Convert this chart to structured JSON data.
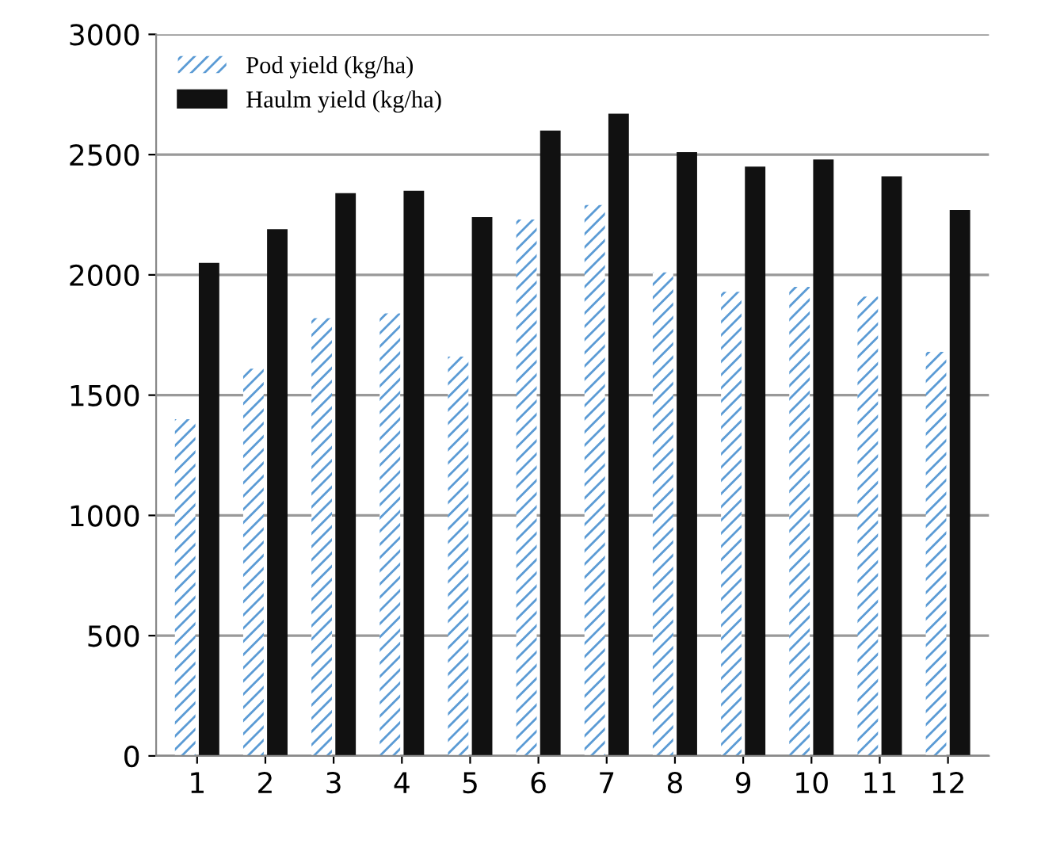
{
  "chart_data": {
    "type": "bar",
    "categories": [
      "1",
      "2",
      "3",
      "4",
      "5",
      "6",
      "7",
      "8",
      "9",
      "10",
      "11",
      "12"
    ],
    "series": [
      {
        "name": "Pod yield (kg/ha)",
        "color": "#5b9bd5",
        "values": [
          1400,
          1610,
          1820,
          1840,
          1660,
          2230,
          2290,
          2010,
          1930,
          1950,
          1910,
          1680
        ]
      },
      {
        "name": "Haulm yield (kg/ha)",
        "color": "#111111",
        "values": [
          2050,
          2190,
          2340,
          2350,
          2240,
          2600,
          2670,
          2510,
          2450,
          2480,
          2410,
          2270
        ]
      }
    ],
    "ylim": [
      0,
      3000
    ],
    "yticks": [
      0,
      500,
      1000,
      1500,
      2000,
      2500,
      3000
    ],
    "grid": "y",
    "legend": "top left"
  }
}
